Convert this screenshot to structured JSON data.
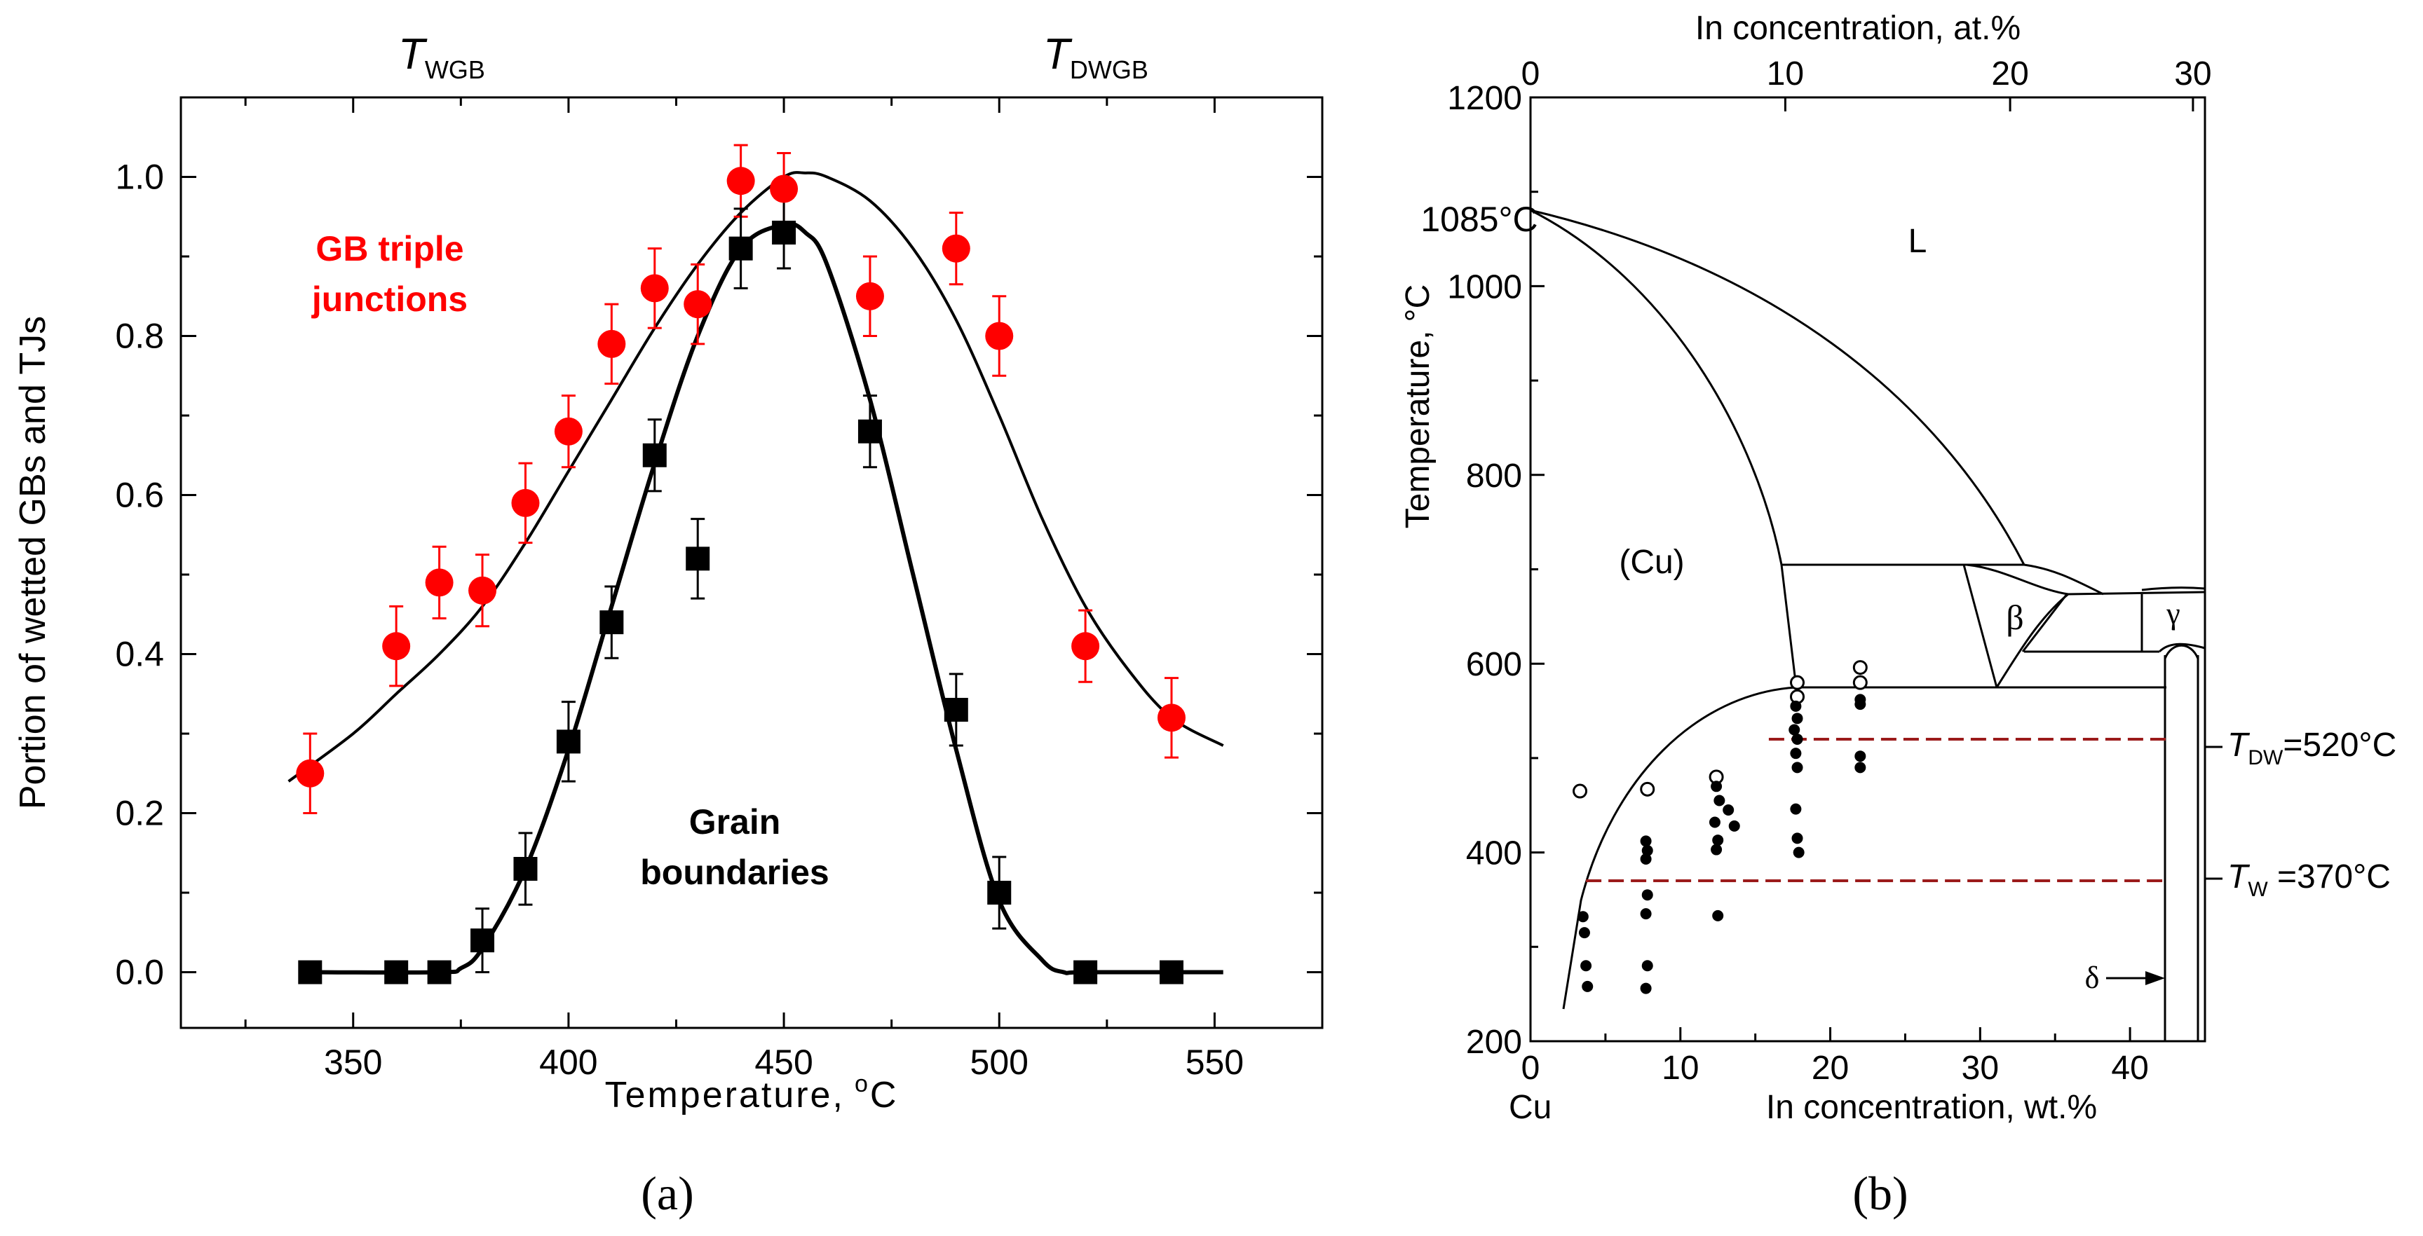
{
  "chart_data": [
    {
      "panel": "a",
      "type": "scatter",
      "caption": "(a)",
      "xlabel": "Temperature, °C",
      "xlabel_text": "Temperature,",
      "xlabel_unit_sup": "o",
      "xlabel_unit": "C",
      "ylabel": "Portion of wetted GBs and TJs",
      "xlim": [
        310,
        575
      ],
      "ylim": [
        -0.07,
        1.1
      ],
      "xticks": [
        350,
        400,
        450,
        500,
        550
      ],
      "yticks": [
        0.0,
        0.2,
        0.4,
        0.6,
        0.8,
        1.0
      ],
      "ytick_labels": [
        "0.0",
        "0.2",
        "0.4",
        "0.6",
        "0.8",
        "1.0"
      ],
      "top_markers": [
        {
          "main": "T",
          "sub": "WGB",
          "x": 375
        },
        {
          "main": "T",
          "sub": "DWGB",
          "x": 505
        }
      ],
      "annotations": {
        "tj_line1": "GB triple",
        "tj_line2": "junctions",
        "gb_line1": "Grain",
        "gb_line2": "boundaries"
      },
      "series": [
        {
          "name": "GB triple junctions",
          "marker": "circle",
          "color": "#ff0000",
          "points": [
            {
              "x": 340,
              "y": 0.25,
              "err": 0.05
            },
            {
              "x": 360,
              "y": 0.41,
              "err": 0.05
            },
            {
              "x": 370,
              "y": 0.49,
              "err": 0.045
            },
            {
              "x": 380,
              "y": 0.48,
              "err": 0.045
            },
            {
              "x": 390,
              "y": 0.59,
              "err": 0.05
            },
            {
              "x": 400,
              "y": 0.68,
              "err": 0.045
            },
            {
              "x": 410,
              "y": 0.79,
              "err": 0.05
            },
            {
              "x": 420,
              "y": 0.86,
              "err": 0.05
            },
            {
              "x": 430,
              "y": 0.84,
              "err": 0.05
            },
            {
              "x": 440,
              "y": 0.995,
              "err": 0.045
            },
            {
              "x": 450,
              "y": 0.985,
              "err": 0.045
            },
            {
              "x": 470,
              "y": 0.85,
              "err": 0.05
            },
            {
              "x": 490,
              "y": 0.91,
              "err": 0.045
            },
            {
              "x": 500,
              "y": 0.8,
              "err": 0.05
            },
            {
              "x": 520,
              "y": 0.41,
              "err": 0.045
            },
            {
              "x": 540,
              "y": 0.32,
              "err": 0.05
            }
          ]
        },
        {
          "name": "Grain boundaries",
          "marker": "square",
          "color": "#000000",
          "points": [
            {
              "x": 340,
              "y": 0.0,
              "err": 0
            },
            {
              "x": 360,
              "y": 0.0,
              "err": 0
            },
            {
              "x": 370,
              "y": 0.0,
              "err": 0
            },
            {
              "x": 380,
              "y": 0.04,
              "err": 0.04
            },
            {
              "x": 390,
              "y": 0.13,
              "err": 0.045
            },
            {
              "x": 400,
              "y": 0.29,
              "err": 0.05
            },
            {
              "x": 410,
              "y": 0.44,
              "err": 0.045
            },
            {
              "x": 420,
              "y": 0.65,
              "err": 0.045
            },
            {
              "x": 430,
              "y": 0.52,
              "err": 0.05
            },
            {
              "x": 440,
              "y": 0.91,
              "err": 0.05
            },
            {
              "x": 450,
              "y": 0.93,
              "err": 0.045
            },
            {
              "x": 470,
              "y": 0.68,
              "err": 0.045
            },
            {
              "x": 490,
              "y": 0.33,
              "err": 0.045
            },
            {
              "x": 500,
              "y": 0.1,
              "err": 0.045
            },
            {
              "x": 520,
              "y": 0.0,
              "err": 0
            },
            {
              "x": 540,
              "y": 0.0,
              "err": 0
            }
          ]
        }
      ],
      "fit_curves": [
        {
          "name": "TJ fit",
          "x": [
            335,
            350,
            360,
            370,
            380,
            390,
            400,
            410,
            420,
            430,
            440,
            450,
            455,
            460,
            470,
            480,
            490,
            500,
            510,
            520,
            530,
            540,
            552
          ],
          "y": [
            0.24,
            0.3,
            0.35,
            0.4,
            0.46,
            0.54,
            0.63,
            0.72,
            0.81,
            0.89,
            0.955,
            1.0,
            1.005,
            1.0,
            0.97,
            0.91,
            0.82,
            0.7,
            0.57,
            0.46,
            0.38,
            0.32,
            0.285
          ]
        },
        {
          "name": "GB fit",
          "x": [
            340,
            370,
            375,
            380,
            390,
            400,
            410,
            420,
            430,
            440,
            450,
            455,
            460,
            470,
            480,
            490,
            500,
            510,
            515,
            520,
            552
          ],
          "y": [
            0.0,
            0.0,
            0.005,
            0.03,
            0.13,
            0.28,
            0.46,
            0.64,
            0.8,
            0.91,
            0.94,
            0.93,
            0.89,
            0.72,
            0.5,
            0.28,
            0.09,
            0.015,
            0.0,
            0.0,
            0.0
          ]
        }
      ]
    },
    {
      "panel": "b",
      "type": "phase-diagram",
      "caption": "(b)",
      "xlabel": "In concentration, wt.%",
      "xlabel_top": "In concentration, at.%",
      "ylabel": "Temperature, °C",
      "ylabel_text": "Temperature,",
      "ylabel_unit": "°C",
      "xlim_wt": [
        0,
        45
      ],
      "ylim": [
        200,
        1200
      ],
      "xticks_wt": [
        0,
        10,
        20,
        30,
        40
      ],
      "xticks_at": [
        0,
        10,
        20,
        30
      ],
      "xticks_at_wt_positions": [
        0,
        17.0,
        32.0,
        44.2
      ],
      "yticks": [
        200,
        400,
        600,
        800,
        1000,
        1200
      ],
      "labels": {
        "melting_point": "1085°C",
        "liquid": "L",
        "cu_phase": "(Cu)",
        "beta": "β",
        "gamma": "γ",
        "delta": "δ",
        "cu": "Cu"
      },
      "reference_lines": [
        {
          "main": "T",
          "sub": "DW",
          "rest": "=520°C",
          "temperature": 520,
          "color": "#9b1b1b"
        },
        {
          "main": "T",
          "sub": "W",
          "rest": " =370°C",
          "temperature": 370,
          "color": "#9b1b1b"
        }
      ],
      "open_points": [
        {
          "x": 3.3,
          "y": 465
        },
        {
          "x": 7.8,
          "y": 467
        },
        {
          "x": 12.4,
          "y": 480
        },
        {
          "x": 17.8,
          "y": 580
        },
        {
          "x": 17.8,
          "y": 565
        },
        {
          "x": 22.0,
          "y": 596
        },
        {
          "x": 22.0,
          "y": 580
        }
      ],
      "filled_points": [
        {
          "x": 3.5,
          "y": 332
        },
        {
          "x": 3.6,
          "y": 315
        },
        {
          "x": 3.7,
          "y": 280
        },
        {
          "x": 3.8,
          "y": 258
        },
        {
          "x": 7.7,
          "y": 412
        },
        {
          "x": 7.8,
          "y": 402
        },
        {
          "x": 7.7,
          "y": 393
        },
        {
          "x": 7.8,
          "y": 355
        },
        {
          "x": 7.7,
          "y": 335
        },
        {
          "x": 7.8,
          "y": 280
        },
        {
          "x": 7.7,
          "y": 256
        },
        {
          "x": 12.4,
          "y": 470
        },
        {
          "x": 12.6,
          "y": 455
        },
        {
          "x": 13.2,
          "y": 445
        },
        {
          "x": 12.3,
          "y": 432
        },
        {
          "x": 13.6,
          "y": 428
        },
        {
          "x": 12.5,
          "y": 413
        },
        {
          "x": 12.4,
          "y": 403
        },
        {
          "x": 12.5,
          "y": 333
        },
        {
          "x": 17.7,
          "y": 555
        },
        {
          "x": 17.8,
          "y": 542
        },
        {
          "x": 17.6,
          "y": 530
        },
        {
          "x": 17.8,
          "y": 520
        },
        {
          "x": 17.7,
          "y": 505
        },
        {
          "x": 17.8,
          "y": 490
        },
        {
          "x": 17.7,
          "y": 446
        },
        {
          "x": 17.8,
          "y": 415
        },
        {
          "x": 17.9,
          "y": 400
        },
        {
          "x": 22.0,
          "y": 562
        },
        {
          "x": 22.0,
          "y": 557
        },
        {
          "x": 22.0,
          "y": 502
        },
        {
          "x": 22.0,
          "y": 490
        }
      ]
    }
  ]
}
